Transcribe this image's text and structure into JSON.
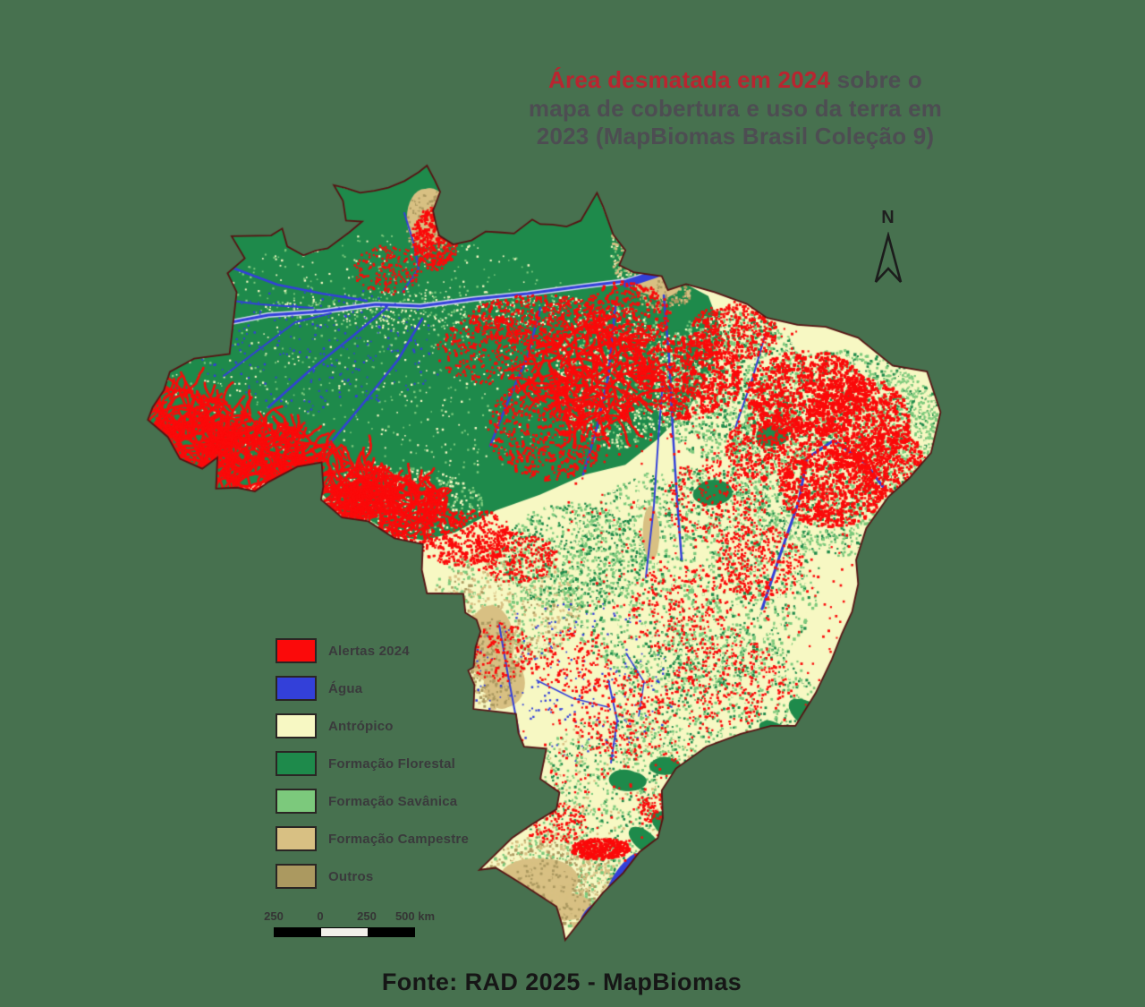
{
  "title": {
    "highlight": "Área desmatada em 2024",
    "rest": " sobre o mapa de cobertura e uso da terra em 2023 (MapBiomas Brasil Coleção 9)"
  },
  "north_indicator": {
    "label": "N"
  },
  "legend": {
    "items": [
      {
        "label": "Alertas 2024",
        "color": "#FB0A0A"
      },
      {
        "label": "Água",
        "color": "#3340D9"
      },
      {
        "label": "Antrópico",
        "color": "#F7F8C3"
      },
      {
        "label": "Formação Florestal",
        "color": "#1E8A4B"
      },
      {
        "label": "Formação Savânica",
        "color": "#7CC97C"
      },
      {
        "label": "Formação Campestre",
        "color": "#D8C083"
      },
      {
        "label": "Outros",
        "color": "#AB9960"
      }
    ]
  },
  "scale_bar": {
    "labels": [
      "250",
      "0",
      "250",
      "500 km"
    ]
  },
  "footer": {
    "source": "Fonte: RAD 2025 - MapBiomas"
  },
  "map": {
    "background_color": "#47714F",
    "border_color": "#571313",
    "river_halo_color": "#C9D3EE"
  }
}
